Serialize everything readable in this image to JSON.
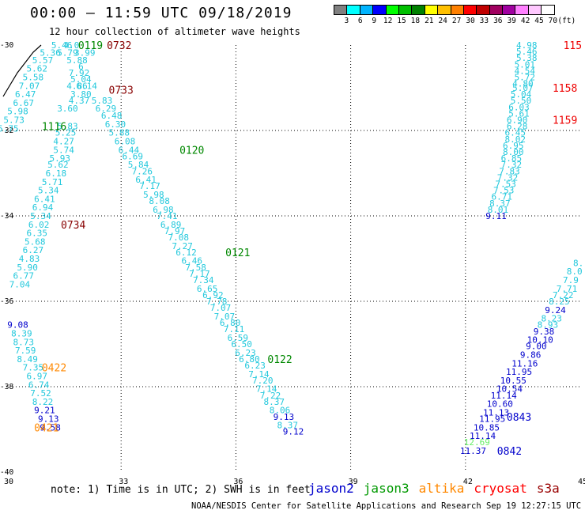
{
  "header": {
    "title": "00:00 – 11:59 UTC 09/18/2019",
    "subtitle": "12 hour collection of altimeter wave heights"
  },
  "color_legend": {
    "labels": [
      "3",
      "6",
      "9",
      "12",
      "15",
      "18",
      "21",
      "24",
      "27",
      "30",
      "33",
      "36",
      "39",
      "42",
      "45",
      "70",
      "(ft)"
    ],
    "colors": [
      "#808080",
      "#00ffff",
      "#00b4ff",
      "#0000ff",
      "#00ff00",
      "#00c000",
      "#008000",
      "#ffff00",
      "#ffc000",
      "#ff8000",
      "#ff0000",
      "#c00000",
      "#a00060",
      "#a000a0",
      "#ff80ff",
      "#ffc8ff",
      "#ffffff"
    ]
  },
  "footer": {
    "note": "note: 1) Time is in UTC; 2) SWH is in feet",
    "satellites": [
      {
        "name": "jason2",
        "color": "#0000cc"
      },
      {
        "name": "jason3",
        "color": "#009900"
      },
      {
        "name": "altika",
        "color": "#ff8800"
      },
      {
        "name": "cryosat",
        "color": "#ff0000"
      },
      {
        "name": "s3a",
        "color": "#990000"
      }
    ],
    "credit": "NOAA/NESDIS Center for Satellite Applications and Research     Sep 19 12:27:15 UTC 2019"
  },
  "chart_data": {
    "type": "scatter",
    "xlim": [
      30,
      45
    ],
    "ylim": [
      -40,
      -30
    ],
    "x_ticks": [
      "30",
      "33",
      "36",
      "39",
      "42",
      "45"
    ],
    "y_ticks": [
      "-30",
      "-32",
      "-34",
      "-36",
      "-38",
      "-40"
    ],
    "colors": {
      "cyan": "#22c8dc",
      "blue": "#0000cc",
      "green": "#008800",
      "orange": "#ff8800",
      "red": "#ee0000",
      "darkred": "#880000",
      "lightgreen": "#66ee66"
    },
    "wave_labels": [
      {
        "x": 31.45,
        "y": -30.0,
        "v": "5.46",
        "c": "cyan"
      },
      {
        "x": 31.7,
        "y": -30.0,
        "v": "4.0",
        "c": "cyan"
      },
      {
        "x": 31.15,
        "y": -30.18,
        "v": "5.36",
        "c": "cyan"
      },
      {
        "x": 31.6,
        "y": -30.18,
        "v": "5.79",
        "c": "cyan"
      },
      {
        "x": 32.05,
        "y": -30.18,
        "v": "3.99",
        "c": "cyan"
      },
      {
        "x": 30.95,
        "y": -30.35,
        "v": "5.57",
        "c": "cyan"
      },
      {
        "x": 31.85,
        "y": -30.35,
        "v": "5.88",
        "c": "cyan"
      },
      {
        "x": 30.8,
        "y": -30.55,
        "v": "5.62",
        "c": "cyan"
      },
      {
        "x": 31.95,
        "y": -30.5,
        "v": "6",
        "c": "cyan"
      },
      {
        "x": 31.9,
        "y": -30.65,
        "v": "7.92",
        "c": "cyan"
      },
      {
        "x": 30.7,
        "y": -30.75,
        "v": "5.58",
        "c": "cyan"
      },
      {
        "x": 31.95,
        "y": -30.8,
        "v": "5.04",
        "c": "cyan"
      },
      {
        "x": 30.6,
        "y": -30.95,
        "v": "7.07",
        "c": "cyan"
      },
      {
        "x": 31.85,
        "y": -30.95,
        "v": "4.86",
        "c": "cyan"
      },
      {
        "x": 32.1,
        "y": -30.95,
        "v": "6.14",
        "c": "cyan"
      },
      {
        "x": 30.5,
        "y": -31.15,
        "v": "6.47",
        "c": "cyan"
      },
      {
        "x": 31.95,
        "y": -31.15,
        "v": "3.80",
        "c": "cyan"
      },
      {
        "x": 30.45,
        "y": -31.35,
        "v": "6.67",
        "c": "cyan"
      },
      {
        "x": 31.9,
        "y": -31.3,
        "v": "4.37",
        "c": "cyan"
      },
      {
        "x": 32.5,
        "y": -31.3,
        "v": "5.83",
        "c": "cyan"
      },
      {
        "x": 30.3,
        "y": -31.55,
        "v": "5.98",
        "c": "cyan"
      },
      {
        "x": 31.6,
        "y": -31.48,
        "v": "3.60",
        "c": "cyan"
      },
      {
        "x": 32.6,
        "y": -31.48,
        "v": "6.29",
        "c": "cyan"
      },
      {
        "x": 30.2,
        "y": -31.75,
        "v": "5.73",
        "c": "cyan"
      },
      {
        "x": 32.75,
        "y": -31.65,
        "v": "6.48",
        "c": "cyan"
      },
      {
        "x": 30.05,
        "y": -31.95,
        "v": "5.75",
        "c": "cyan"
      },
      {
        "x": 31.6,
        "y": -31.9,
        "v": "5.83",
        "c": "cyan"
      },
      {
        "x": 32.85,
        "y": -31.85,
        "v": "6.30",
        "c": "cyan"
      },
      {
        "x": 31.55,
        "y": -32.05,
        "v": "5.25",
        "c": "cyan"
      },
      {
        "x": 32.95,
        "y": -32.05,
        "v": "5.88",
        "c": "cyan"
      },
      {
        "x": 31.5,
        "y": -32.25,
        "v": "4.27",
        "c": "cyan"
      },
      {
        "x": 33.1,
        "y": -32.25,
        "v": "6.08",
        "c": "cyan"
      },
      {
        "x": 31.5,
        "y": -32.45,
        "v": "5.74",
        "c": "cyan"
      },
      {
        "x": 33.2,
        "y": -32.45,
        "v": "6.44",
        "c": "cyan"
      },
      {
        "x": 31.4,
        "y": -32.65,
        "v": "5.93",
        "c": "cyan"
      },
      {
        "x": 33.3,
        "y": -32.6,
        "v": "6.69",
        "c": "cyan"
      },
      {
        "x": 31.35,
        "y": -32.8,
        "v": "5.62",
        "c": "cyan"
      },
      {
        "x": 33.45,
        "y": -32.8,
        "v": "5.84",
        "c": "cyan"
      },
      {
        "x": 31.3,
        "y": -33.0,
        "v": "6.18",
        "c": "cyan"
      },
      {
        "x": 33.55,
        "y": -32.95,
        "v": "7.26",
        "c": "cyan"
      },
      {
        "x": 31.2,
        "y": -33.2,
        "v": "5.71",
        "c": "cyan"
      },
      {
        "x": 33.65,
        "y": -33.15,
        "v": "6.41",
        "c": "cyan"
      },
      {
        "x": 31.1,
        "y": -33.4,
        "v": "5.34",
        "c": "cyan"
      },
      {
        "x": 33.75,
        "y": -33.3,
        "v": "7.17",
        "c": "cyan"
      },
      {
        "x": 31.0,
        "y": -33.6,
        "v": "6.41",
        "c": "cyan"
      },
      {
        "x": 33.85,
        "y": -33.5,
        "v": "5.98",
        "c": "cyan"
      },
      {
        "x": 30.95,
        "y": -33.8,
        "v": "6.94",
        "c": "cyan"
      },
      {
        "x": 34.0,
        "y": -33.65,
        "v": "8.08",
        "c": "cyan"
      },
      {
        "x": 30.9,
        "y": -34.0,
        "v": "5.34",
        "c": "cyan"
      },
      {
        "x": 34.1,
        "y": -33.85,
        "v": "6.98",
        "c": "cyan"
      },
      {
        "x": 30.85,
        "y": -34.2,
        "v": "6.02",
        "c": "cyan"
      },
      {
        "x": 34.2,
        "y": -34.0,
        "v": "7.41",
        "c": "cyan"
      },
      {
        "x": 30.8,
        "y": -34.4,
        "v": "6.35",
        "c": "cyan"
      },
      {
        "x": 34.3,
        "y": -34.2,
        "v": "6.89",
        "c": "cyan"
      },
      {
        "x": 30.75,
        "y": -34.6,
        "v": "5.68",
        "c": "cyan"
      },
      {
        "x": 34.4,
        "y": -34.35,
        "v": "7.97",
        "c": "cyan"
      },
      {
        "x": 30.7,
        "y": -34.8,
        "v": "6.27",
        "c": "cyan"
      },
      {
        "x": 34.5,
        "y": -34.5,
        "v": "7.08",
        "c": "cyan"
      },
      {
        "x": 30.6,
        "y": -35.0,
        "v": "4.83",
        "c": "cyan"
      },
      {
        "x": 34.6,
        "y": -34.7,
        "v": "7.27",
        "c": "cyan"
      },
      {
        "x": 30.55,
        "y": -35.2,
        "v": "5.90",
        "c": "cyan"
      },
      {
        "x": 34.7,
        "y": -34.85,
        "v": "6.12",
        "c": "cyan"
      },
      {
        "x": 30.45,
        "y": -35.4,
        "v": "6.77",
        "c": "cyan"
      },
      {
        "x": 34.85,
        "y": -35.05,
        "v": "6.46",
        "c": "cyan"
      },
      {
        "x": 30.35,
        "y": -35.6,
        "v": "7.04",
        "c": "cyan"
      },
      {
        "x": 34.95,
        "y": -35.2,
        "v": "7.58",
        "c": "cyan"
      },
      {
        "x": 35.05,
        "y": -35.35,
        "v": "7.17",
        "c": "cyan"
      },
      {
        "x": 35.15,
        "y": -35.5,
        "v": "7.34",
        "c": "cyan"
      },
      {
        "x": 35.25,
        "y": -35.7,
        "v": "6.65",
        "c": "cyan"
      },
      {
        "x": 35.4,
        "y": -35.85,
        "v": "6.92",
        "c": "cyan"
      },
      {
        "x": 35.5,
        "y": -36.0,
        "v": "7.78",
        "c": "cyan"
      },
      {
        "x": 35.6,
        "y": -36.15,
        "v": "7.07",
        "c": "cyan"
      },
      {
        "x": 35.7,
        "y": -36.35,
        "v": "7.07",
        "c": "cyan"
      },
      {
        "x": 35.85,
        "y": -36.5,
        "v": "6.80",
        "c": "cyan"
      },
      {
        "x": 35.95,
        "y": -36.65,
        "v": "7.11",
        "c": "cyan"
      },
      {
        "x": 36.05,
        "y": -36.85,
        "v": "6.59",
        "c": "cyan"
      },
      {
        "x": 36.15,
        "y": -37.0,
        "v": "6.50",
        "c": "cyan"
      },
      {
        "x": 36.25,
        "y": -37.2,
        "v": "6.23",
        "c": "cyan"
      },
      {
        "x": 36.35,
        "y": -37.35,
        "v": "6.80",
        "c": "cyan"
      },
      {
        "x": 36.5,
        "y": -37.5,
        "v": "6.23",
        "c": "cyan"
      },
      {
        "x": 36.6,
        "y": -37.7,
        "v": "7.14",
        "c": "cyan"
      },
      {
        "x": 36.7,
        "y": -37.85,
        "v": "7.20",
        "c": "cyan"
      },
      {
        "x": 36.8,
        "y": -38.05,
        "v": "7.14",
        "c": "cyan"
      },
      {
        "x": 36.9,
        "y": -38.2,
        "v": "7.22",
        "c": "cyan"
      },
      {
        "x": 37.0,
        "y": -38.35,
        "v": "8.37",
        "c": "cyan"
      },
      {
        "x": 37.15,
        "y": -38.55,
        "v": "8.06",
        "c": "cyan"
      },
      {
        "x": 37.25,
        "y": -38.7,
        "v": "9.13",
        "c": "blue"
      },
      {
        "x": 37.35,
        "y": -38.9,
        "v": "8.37",
        "c": "cyan"
      },
      {
        "x": 37.5,
        "y": -39.05,
        "v": "9.12",
        "c": "blue"
      },
      {
        "x": 30.3,
        "y": -36.55,
        "v": "9.08",
        "c": "blue"
      },
      {
        "x": 30.4,
        "y": -36.75,
        "v": "8.39",
        "c": "cyan"
      },
      {
        "x": 30.45,
        "y": -36.95,
        "v": "8.73",
        "c": "cyan"
      },
      {
        "x": 30.5,
        "y": -37.15,
        "v": "7.59",
        "c": "cyan"
      },
      {
        "x": 30.55,
        "y": -37.35,
        "v": "8.49",
        "c": "cyan"
      },
      {
        "x": 30.7,
        "y": -37.55,
        "v": "7.35",
        "c": "cyan"
      },
      {
        "x": 30.8,
        "y": -37.75,
        "v": "6.97",
        "c": "cyan"
      },
      {
        "x": 30.85,
        "y": -37.95,
        "v": "6.74",
        "c": "cyan"
      },
      {
        "x": 30.9,
        "y": -38.15,
        "v": "7.52",
        "c": "cyan"
      },
      {
        "x": 30.95,
        "y": -38.35,
        "v": "8.22",
        "c": "cyan"
      },
      {
        "x": 31.0,
        "y": -38.55,
        "v": "9.21",
        "c": "blue"
      },
      {
        "x": 31.1,
        "y": -38.75,
        "v": "9.13",
        "c": "blue"
      },
      {
        "x": 31.15,
        "y": -38.95,
        "v": "9.58",
        "c": "blue"
      },
      {
        "x": 43.6,
        "y": -30.0,
        "v": "4.98",
        "c": "cyan"
      },
      {
        "x": 43.6,
        "y": -30.15,
        "v": "5.46",
        "c": "cyan"
      },
      {
        "x": 43.6,
        "y": -30.3,
        "v": "5.38",
        "c": "cyan"
      },
      {
        "x": 43.55,
        "y": -30.45,
        "v": "5.01",
        "c": "cyan"
      },
      {
        "x": 43.55,
        "y": -30.6,
        "v": "4.54",
        "c": "cyan"
      },
      {
        "x": 43.55,
        "y": -30.75,
        "v": "5.72",
        "c": "cyan"
      },
      {
        "x": 43.5,
        "y": -30.9,
        "v": "4.80",
        "c": "cyan"
      },
      {
        "x": 43.5,
        "y": -31.0,
        "v": "5.07",
        "c": "cyan"
      },
      {
        "x": 43.45,
        "y": -31.15,
        "v": "5.04",
        "c": "cyan"
      },
      {
        "x": 43.45,
        "y": -31.3,
        "v": "5.50",
        "c": "cyan"
      },
      {
        "x": 43.4,
        "y": -31.45,
        "v": "6.03",
        "c": "cyan"
      },
      {
        "x": 43.4,
        "y": -31.6,
        "v": "5.61",
        "c": "cyan"
      },
      {
        "x": 43.35,
        "y": -31.75,
        "v": "6.90",
        "c": "cyan"
      },
      {
        "x": 43.35,
        "y": -31.9,
        "v": "6.28",
        "c": "cyan"
      },
      {
        "x": 43.3,
        "y": -32.05,
        "v": "6.45",
        "c": "cyan"
      },
      {
        "x": 43.3,
        "y": -32.2,
        "v": "8.02",
        "c": "cyan"
      },
      {
        "x": 43.25,
        "y": -32.35,
        "v": "6.95",
        "c": "cyan"
      },
      {
        "x": 43.25,
        "y": -32.5,
        "v": "8.00",
        "c": "cyan"
      },
      {
        "x": 43.2,
        "y": -32.65,
        "v": "6.85",
        "c": "cyan"
      },
      {
        "x": 43.2,
        "y": -32.8,
        "v": "7.32",
        "c": "cyan"
      },
      {
        "x": 43.15,
        "y": -32.95,
        "v": "7.83",
        "c": "cyan"
      },
      {
        "x": 43.1,
        "y": -33.1,
        "v": "7.32",
        "c": "cyan"
      },
      {
        "x": 43.05,
        "y": -33.25,
        "v": "7.53",
        "c": "cyan"
      },
      {
        "x": 43.0,
        "y": -33.4,
        "v": "7.53",
        "c": "cyan"
      },
      {
        "x": 42.95,
        "y": -33.55,
        "v": "6.71",
        "c": "cyan"
      },
      {
        "x": 42.9,
        "y": -33.7,
        "v": "8.37",
        "c": "cyan"
      },
      {
        "x": 42.85,
        "y": -33.85,
        "v": "8.01",
        "c": "cyan"
      },
      {
        "x": 42.8,
        "y": -34.0,
        "v": "9.11",
        "c": "blue"
      },
      {
        "x": 44.95,
        "y": -35.1,
        "v": "8.",
        "c": "cyan"
      },
      {
        "x": 44.85,
        "y": -35.3,
        "v": "8.0",
        "c": "cyan"
      },
      {
        "x": 44.75,
        "y": -35.5,
        "v": "7.9",
        "c": "cyan"
      },
      {
        "x": 44.65,
        "y": -35.7,
        "v": "7.71",
        "c": "cyan"
      },
      {
        "x": 44.55,
        "y": -35.85,
        "v": "7.22",
        "c": "cyan"
      },
      {
        "x": 44.45,
        "y": -36.0,
        "v": "8.25",
        "c": "cyan"
      },
      {
        "x": 44.35,
        "y": -36.2,
        "v": "9.24",
        "c": "blue"
      },
      {
        "x": 44.25,
        "y": -36.4,
        "v": "8.23",
        "c": "cyan"
      },
      {
        "x": 44.15,
        "y": -36.55,
        "v": "8.93",
        "c": "cyan"
      },
      {
        "x": 44.05,
        "y": -36.7,
        "v": "9.38",
        "c": "blue"
      },
      {
        "x": 43.95,
        "y": -36.9,
        "v": "10.10",
        "c": "blue"
      },
      {
        "x": 43.85,
        "y": -37.05,
        "v": "9.00",
        "c": "blue"
      },
      {
        "x": 43.7,
        "y": -37.25,
        "v": "9.86",
        "c": "blue"
      },
      {
        "x": 43.55,
        "y": -37.45,
        "v": "11.16",
        "c": "blue"
      },
      {
        "x": 43.4,
        "y": -37.65,
        "v": "11.95",
        "c": "blue"
      },
      {
        "x": 43.25,
        "y": -37.85,
        "v": "10.55",
        "c": "blue"
      },
      {
        "x": 43.15,
        "y": -38.05,
        "v": "10.54",
        "c": "blue"
      },
      {
        "x": 43.0,
        "y": -38.2,
        "v": "11.14",
        "c": "blue"
      },
      {
        "x": 42.9,
        "y": -38.4,
        "v": "10.60",
        "c": "blue"
      },
      {
        "x": 42.8,
        "y": -38.6,
        "v": "11.13",
        "c": "blue"
      },
      {
        "x": 42.7,
        "y": -38.75,
        "v": "11.95",
        "c": "blue"
      },
      {
        "x": 42.55,
        "y": -38.95,
        "v": "10.85",
        "c": "blue"
      },
      {
        "x": 42.45,
        "y": -39.15,
        "v": "11.14",
        "c": "blue"
      },
      {
        "x": 42.3,
        "y": -39.3,
        "v": "12.69",
        "c": "lightgreen"
      },
      {
        "x": 42.2,
        "y": -39.5,
        "v": "11.37",
        "c": "blue"
      }
    ],
    "time_labels": [
      {
        "x": 32.2,
        "y": -30.0,
        "v": "0119",
        "c": "green"
      },
      {
        "x": 32.95,
        "y": -30.0,
        "v": "0732",
        "c": "darkred"
      },
      {
        "x": 33.0,
        "y": -31.05,
        "v": "0733",
        "c": "darkred"
      },
      {
        "x": 31.25,
        "y": -31.9,
        "v": "1116",
        "c": "green"
      },
      {
        "x": 34.85,
        "y": -32.45,
        "v": "0120",
        "c": "green"
      },
      {
        "x": 31.75,
        "y": -34.2,
        "v": "0734",
        "c": "darkred"
      },
      {
        "x": 36.05,
        "y": -34.85,
        "v": "0121",
        "c": "green"
      },
      {
        "x": 37.15,
        "y": -37.35,
        "v": "0122",
        "c": "green"
      },
      {
        "x": 31.25,
        "y": -37.55,
        "v": "0422",
        "c": "orange"
      },
      {
        "x": 31.05,
        "y": -38.95,
        "v": "0421",
        "c": "orange"
      },
      {
        "x": 44.8,
        "y": -30.0,
        "v": "115",
        "c": "red"
      },
      {
        "x": 44.6,
        "y": -31.0,
        "v": "1158",
        "c": "red"
      },
      {
        "x": 44.6,
        "y": -31.75,
        "v": "1159",
        "c": "red"
      },
      {
        "x": 43.4,
        "y": -38.7,
        "v": "0843",
        "c": "blue"
      },
      {
        "x": 43.15,
        "y": -39.5,
        "v": "0842",
        "c": "blue"
      }
    ]
  }
}
